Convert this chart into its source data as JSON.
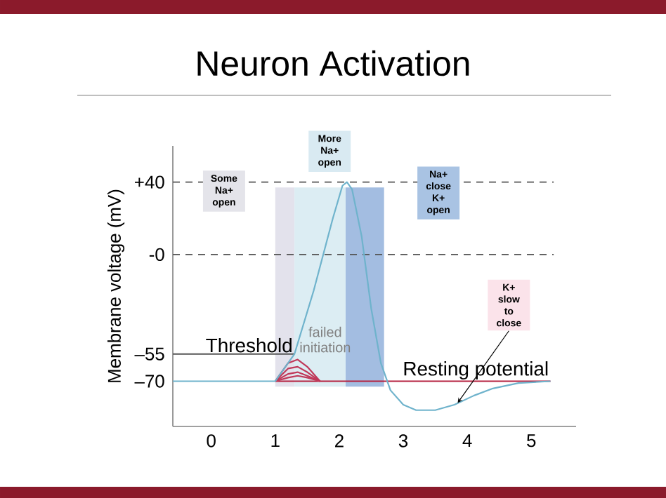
{
  "chart_data": {
    "type": "line",
    "title": "Neuron Activation",
    "ylabel": "Membrane voltage (mV)",
    "xlim": [
      -0.6,
      5.7
    ],
    "ylim": [
      -95,
      60
    ],
    "xticks": [
      0,
      1,
      2,
      3,
      4,
      5
    ],
    "yticks": [
      {
        "value": 40,
        "label": "+40"
      },
      {
        "value": 0,
        "label": "-0"
      },
      {
        "value": -55,
        "label": "–55"
      },
      {
        "value": -70,
        "label": "–70"
      }
    ],
    "series": [
      {
        "name": "Threshold",
        "color": "#555555",
        "x": [
          -0.6,
          1.3
        ],
        "values": [
          -55,
          -55
        ]
      },
      {
        "name": "Resting potential",
        "color": "#b5213f",
        "x": [
          1.0,
          5.3
        ],
        "values": [
          -70,
          -70
        ]
      },
      {
        "color": "#c0395a",
        "x": [
          1.0,
          1.2,
          1.35,
          1.5,
          1.7
        ],
        "values": [
          -70,
          -60,
          -58,
          -62,
          -70
        ]
      },
      {
        "color": "#c0395a",
        "x": [
          1.0,
          1.2,
          1.35,
          1.5,
          1.7
        ],
        "values": [
          -70,
          -63,
          -62,
          -65,
          -70
        ]
      },
      {
        "color": "#c0395a",
        "x": [
          1.0,
          1.2,
          1.35,
          1.5,
          1.7
        ],
        "values": [
          -70,
          -66,
          -65,
          -67,
          -70
        ]
      },
      {
        "color": "#c0395a",
        "x": [
          1.0,
          1.2,
          1.35,
          1.5,
          1.7
        ],
        "values": [
          -70,
          -68,
          -67,
          -68,
          -70
        ]
      },
      {
        "color": "#6fb3cc",
        "x": [
          -0.6,
          1.0,
          1.3,
          1.6,
          1.9,
          2.05,
          2.12,
          2.2,
          2.35,
          2.5,
          2.65,
          2.8,
          3.0,
          3.2,
          3.5,
          3.8,
          4.1,
          4.4,
          4.8,
          5.3
        ],
        "values": [
          -70,
          -70,
          -55,
          -20,
          20,
          38,
          40,
          36,
          10,
          -30,
          -60,
          -75,
          -83,
          -86,
          -86,
          -83,
          -78,
          -74,
          -71,
          -70
        ]
      }
    ],
    "ref_lines": [
      {
        "axis": "y",
        "value": 40,
        "color": "#555555",
        "line_style": "dashed"
      },
      {
        "axis": "y",
        "value": 0,
        "color": "#555555",
        "line_style": "dashed"
      }
    ],
    "bands": [
      {
        "axis": "x",
        "from": 1.0,
        "to": 1.3,
        "color": "#e3e2ec"
      },
      {
        "axis": "x",
        "from": 1.3,
        "to": 2.1,
        "color": "#dcedf3"
      },
      {
        "axis": "x",
        "from": 2.1,
        "to": 2.7,
        "color": "#a3bde1"
      }
    ],
    "annotations": [
      {
        "text": "Some Na+ open",
        "x": 0.2,
        "y": 35
      },
      {
        "text": "More Na+ open",
        "x": 1.85,
        "y": 57
      },
      {
        "text": "Na+ close K+ open",
        "x": 3.55,
        "y": 34
      },
      "failed initiation",
      {
        "text": "K+ slow to close",
        "x": 3.85,
        "y": -82
      }
    ],
    "grid": false,
    "marker": "none",
    "line_style": "solid"
  }
}
